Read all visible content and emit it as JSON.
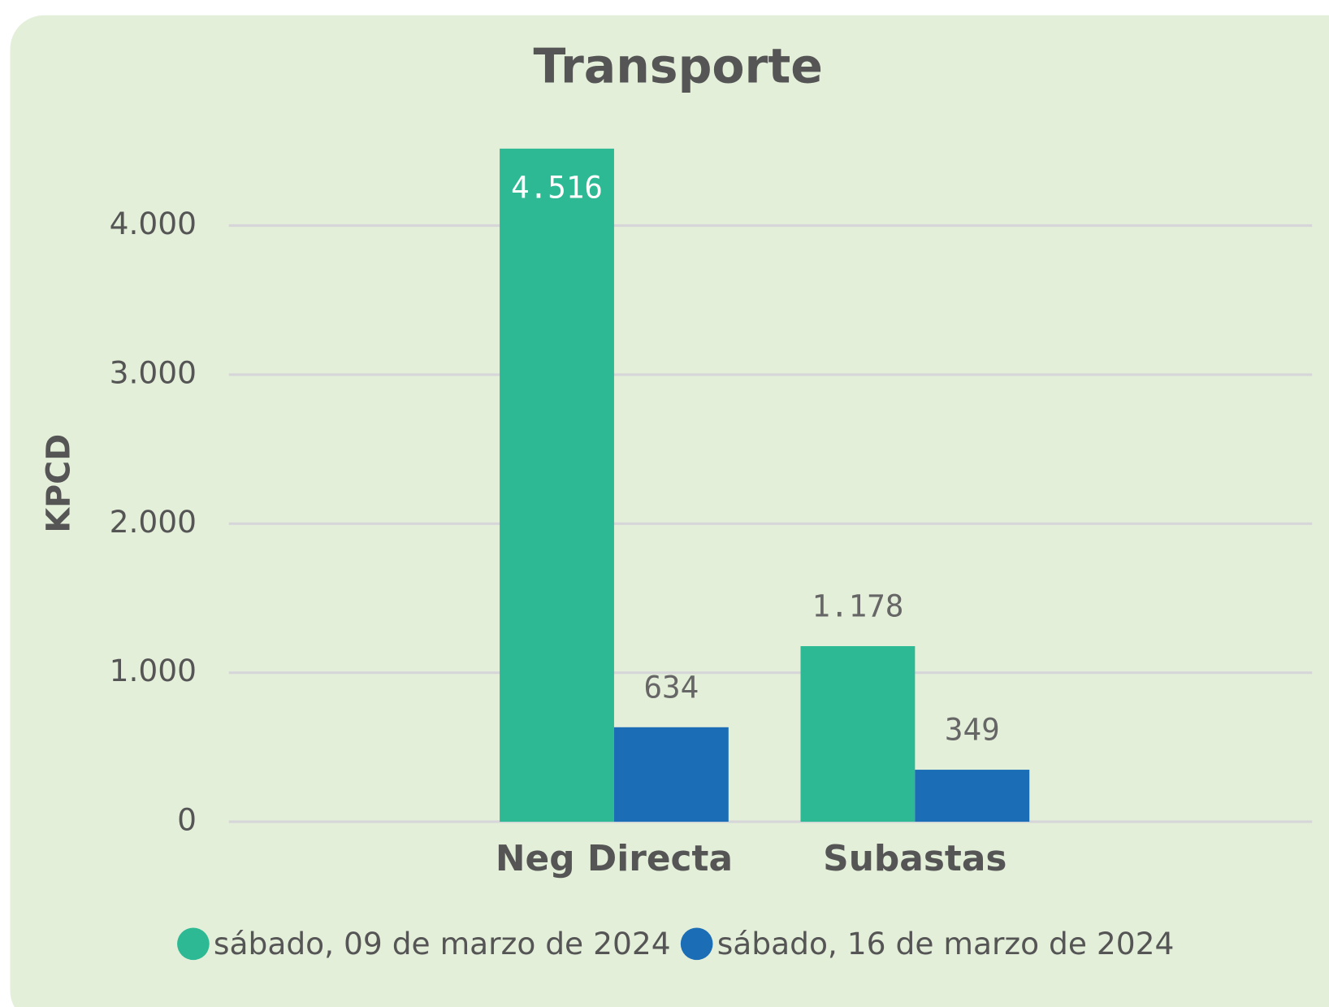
{
  "chart_data": {
    "type": "bar",
    "title": "Transporte",
    "y_label": "KPCD",
    "categories": [
      "Neg Directa",
      "Subastas"
    ],
    "series": [
      {
        "name": "sábado, 09 de marzo de 2024",
        "color": "#2db994",
        "values": [
          4516,
          1178
        ],
        "value_labels": [
          "4.516",
          "1.178"
        ]
      },
      {
        "name": "sábado, 16 de marzo de 2024",
        "color": "#1b6db5",
        "values": [
          634,
          349
        ]
      }
    ],
    "ylim": [
      0,
      4600
    ],
    "yticks": [
      0,
      {
        "value": 1000,
        "label": "1.000"
      },
      {
        "value": 2000,
        "label": "2.000"
      },
      {
        "value": 3000,
        "label": "3.000"
      },
      {
        "value": 4000,
        "label": "4.000"
      }
    ],
    "grid": true,
    "legend": "bottom"
  }
}
